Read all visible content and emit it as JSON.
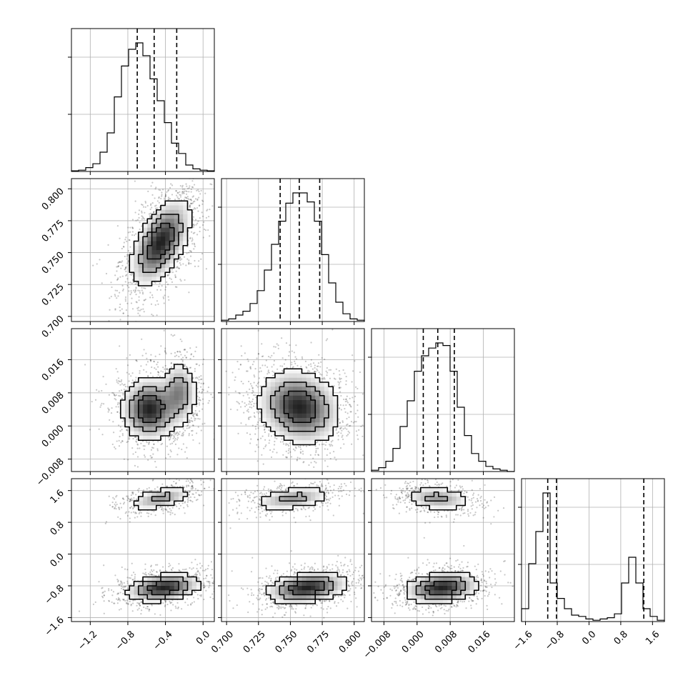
{
  "chart_data": {
    "type": "corner",
    "title": "",
    "grid": true,
    "colors": {
      "line": "#000000",
      "grid": "#b0b0b0",
      "density": "#000000"
    },
    "parameters": [
      {
        "name": "",
        "range": [
          -1.4,
          0.12
        ],
        "ticks": [
          -1.2,
          -0.8,
          -0.4,
          0.0
        ],
        "tick_labels": [
          "−1.2",
          "−0.8",
          "−0.4",
          "0.0"
        ],
        "quantiles": [
          -0.7,
          -0.52,
          -0.28
        ]
      },
      {
        "name": "",
        "range": [
          0.696,
          0.808
        ],
        "ticks": [
          0.7,
          0.725,
          0.75,
          0.775,
          0.8
        ],
        "tick_labels": [
          "0.700",
          "0.725",
          "0.750",
          "0.775",
          "0.800"
        ],
        "quantiles": [
          0.742,
          0.757,
          0.773
        ]
      },
      {
        "name": "",
        "range": [
          -0.011,
          0.0235
        ],
        "ticks": [
          -0.008,
          0.0,
          0.008,
          0.016
        ],
        "tick_labels": [
          "−0.008",
          "0.000",
          "0.008",
          "0.016"
        ],
        "quantiles": [
          0.0015,
          0.005,
          0.009
        ]
      },
      {
        "name": "",
        "range": [
          -1.7,
          1.9
        ],
        "ticks": [
          -1.6,
          -0.8,
          0.0,
          0.8,
          1.6
        ],
        "tick_labels": [
          "−1.6",
          "−0.8",
          "0.0",
          "0.8",
          "1.6"
        ],
        "quantiles": [
          -1.04,
          -0.82,
          1.38
        ]
      }
    ],
    "histograms": [
      [
        0.005,
        0.01,
        0.03,
        0.06,
        0.15,
        0.3,
        0.58,
        0.82,
        0.95,
        1.0,
        0.9,
        0.72,
        0.55,
        0.38,
        0.22,
        0.14,
        0.05,
        0.02,
        0.01,
        0.005
      ],
      [
        0.01,
        0.02,
        0.05,
        0.08,
        0.14,
        0.24,
        0.4,
        0.6,
        0.78,
        0.92,
        1.0,
        1.0,
        0.93,
        0.78,
        0.52,
        0.3,
        0.15,
        0.06,
        0.02,
        0.01
      ],
      [
        0.01,
        0.03,
        0.08,
        0.18,
        0.35,
        0.55,
        0.78,
        0.9,
        0.96,
        1.0,
        0.98,
        0.78,
        0.5,
        0.28,
        0.14,
        0.08,
        0.04,
        0.02,
        0.01,
        0.0
      ],
      [
        0.1,
        0.45,
        0.7,
        1.0,
        0.3,
        0.18,
        0.1,
        0.05,
        0.04,
        0.02,
        0.01,
        0.02,
        0.03,
        0.06,
        0.3,
        0.5,
        0.3,
        0.1,
        0.04,
        0.01
      ]
    ],
    "pairs": [
      {
        "x": 0,
        "y": 1,
        "modes": [
          {
            "mx": -0.45,
            "my": 0.758,
            "sx": 0.16,
            "sy": 0.017,
            "rho": 0.55,
            "w": 1.0
          }
        ]
      },
      {
        "x": 0,
        "y": 2,
        "modes": [
          {
            "mx": -0.57,
            "my": 0.004,
            "sx": 0.15,
            "sy": 0.0038,
            "rho": 0.0,
            "w": 0.7
          },
          {
            "mx": -0.25,
            "my": 0.008,
            "sx": 0.1,
            "sy": 0.004,
            "rho": 0.0,
            "w": 0.4
          }
        ]
      },
      {
        "x": 1,
        "y": 2,
        "modes": [
          {
            "mx": 0.757,
            "my": 0.0045,
            "sx": 0.016,
            "sy": 0.0045,
            "rho": -0.15,
            "w": 1.0
          }
        ]
      },
      {
        "x": 0,
        "y": 3,
        "modes": [
          {
            "mx": -0.45,
            "my": 1.4,
            "sx": 0.18,
            "sy": 0.16,
            "rho": 0.5,
            "w": 0.4
          },
          {
            "mx": -0.42,
            "my": -0.85,
            "sx": 0.2,
            "sy": 0.18,
            "rho": 0.3,
            "w": 0.8
          }
        ]
      },
      {
        "x": 1,
        "y": 3,
        "modes": [
          {
            "mx": 0.752,
            "my": 1.4,
            "sx": 0.016,
            "sy": 0.16,
            "rho": 0.4,
            "w": 0.4
          },
          {
            "mx": 0.763,
            "my": -0.85,
            "sx": 0.016,
            "sy": 0.2,
            "rho": 0.3,
            "w": 0.8
          }
        ]
      },
      {
        "x": 2,
        "y": 3,
        "modes": [
          {
            "mx": 0.005,
            "my": 1.4,
            "sx": 0.0042,
            "sy": 0.16,
            "rho": -0.2,
            "w": 0.4
          },
          {
            "mx": 0.006,
            "my": -0.85,
            "sx": 0.0045,
            "sy": 0.2,
            "rho": 0.2,
            "w": 0.8
          }
        ]
      }
    ]
  }
}
